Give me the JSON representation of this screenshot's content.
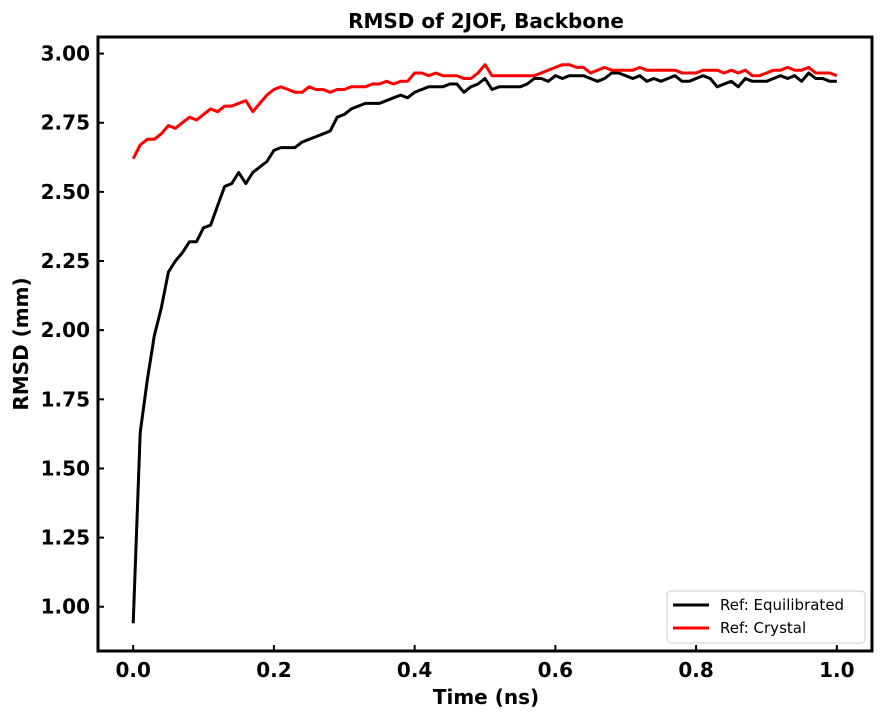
{
  "chart_data": {
    "type": "line",
    "title": "RMSD of 2JOF, Backbone",
    "xlabel": "Time (ns)",
    "ylabel": "RMSD (mm)",
    "xlim": [
      -0.05,
      1.05
    ],
    "ylim": [
      0.84,
      3.06
    ],
    "xticks": [
      0.0,
      0.2,
      0.4,
      0.6,
      0.8,
      1.0
    ],
    "xtick_labels": [
      "0.0",
      "0.2",
      "0.4",
      "0.6",
      "0.8",
      "1.0"
    ],
    "yticks": [
      1.0,
      1.25,
      1.5,
      1.75,
      2.0,
      2.25,
      2.5,
      2.75,
      3.0
    ],
    "ytick_labels": [
      "1.00",
      "1.25",
      "1.50",
      "1.75",
      "2.00",
      "2.25",
      "2.50",
      "2.75",
      "3.00"
    ],
    "grid": false,
    "legend_position": "bottom-right",
    "x": [
      0.0,
      0.01,
      0.02,
      0.03,
      0.04,
      0.05,
      0.06,
      0.07,
      0.08,
      0.09,
      0.1,
      0.11,
      0.12,
      0.13,
      0.14,
      0.15,
      0.16,
      0.17,
      0.18,
      0.19,
      0.2,
      0.21,
      0.22,
      0.23,
      0.24,
      0.25,
      0.26,
      0.27,
      0.28,
      0.29,
      0.3,
      0.31,
      0.32,
      0.33,
      0.34,
      0.35,
      0.36,
      0.37,
      0.38,
      0.39,
      0.4,
      0.41,
      0.42,
      0.43,
      0.44,
      0.45,
      0.46,
      0.47,
      0.48,
      0.49,
      0.5,
      0.51,
      0.52,
      0.53,
      0.54,
      0.55,
      0.56,
      0.57,
      0.58,
      0.59,
      0.6,
      0.61,
      0.62,
      0.63,
      0.64,
      0.65,
      0.66,
      0.67,
      0.68,
      0.69,
      0.7,
      0.71,
      0.72,
      0.73,
      0.74,
      0.75,
      0.76,
      0.77,
      0.78,
      0.79,
      0.8,
      0.81,
      0.82,
      0.83,
      0.84,
      0.85,
      0.86,
      0.87,
      0.88,
      0.89,
      0.9,
      0.91,
      0.92,
      0.93,
      0.94,
      0.95,
      0.96,
      0.97,
      0.98,
      0.99,
      1.0
    ],
    "series": [
      {
        "name": "Ref: Equilibrated",
        "color": "#000000",
        "values": [
          0.94,
          1.63,
          1.82,
          1.98,
          2.08,
          2.21,
          2.25,
          2.28,
          2.32,
          2.32,
          2.37,
          2.38,
          2.45,
          2.52,
          2.53,
          2.57,
          2.53,
          2.57,
          2.59,
          2.61,
          2.65,
          2.66,
          2.66,
          2.66,
          2.68,
          2.69,
          2.7,
          2.71,
          2.72,
          2.77,
          2.78,
          2.8,
          2.81,
          2.82,
          2.82,
          2.82,
          2.83,
          2.84,
          2.85,
          2.84,
          2.86,
          2.87,
          2.88,
          2.88,
          2.88,
          2.89,
          2.89,
          2.86,
          2.88,
          2.89,
          2.91,
          2.87,
          2.88,
          2.88,
          2.88,
          2.88,
          2.89,
          2.91,
          2.91,
          2.9,
          2.92,
          2.91,
          2.92,
          2.92,
          2.92,
          2.91,
          2.9,
          2.91,
          2.93,
          2.93,
          2.92,
          2.91,
          2.92,
          2.9,
          2.91,
          2.9,
          2.91,
          2.92,
          2.9,
          2.9,
          2.91,
          2.92,
          2.91,
          2.88,
          2.89,
          2.9,
          2.88,
          2.91,
          2.9,
          2.9,
          2.9,
          2.91,
          2.92,
          2.91,
          2.92,
          2.9,
          2.93,
          2.91,
          2.91,
          2.9,
          2.9
        ]
      },
      {
        "name": "Ref: Crystal",
        "color": "#ff0000",
        "values": [
          2.62,
          2.67,
          2.69,
          2.69,
          2.71,
          2.74,
          2.73,
          2.75,
          2.77,
          2.76,
          2.78,
          2.8,
          2.79,
          2.81,
          2.81,
          2.82,
          2.83,
          2.79,
          2.82,
          2.85,
          2.87,
          2.88,
          2.87,
          2.86,
          2.86,
          2.88,
          2.87,
          2.87,
          2.86,
          2.87,
          2.87,
          2.88,
          2.88,
          2.88,
          2.89,
          2.89,
          2.9,
          2.89,
          2.9,
          2.9,
          2.93,
          2.93,
          2.92,
          2.93,
          2.92,
          2.92,
          2.92,
          2.91,
          2.91,
          2.93,
          2.96,
          2.92,
          2.92,
          2.92,
          2.92,
          2.92,
          2.92,
          2.92,
          2.93,
          2.94,
          2.95,
          2.96,
          2.96,
          2.95,
          2.95,
          2.93,
          2.94,
          2.95,
          2.94,
          2.94,
          2.94,
          2.94,
          2.95,
          2.94,
          2.94,
          2.94,
          2.94,
          2.94,
          2.93,
          2.93,
          2.93,
          2.94,
          2.94,
          2.94,
          2.93,
          2.94,
          2.93,
          2.94,
          2.92,
          2.92,
          2.93,
          2.94,
          2.94,
          2.95,
          2.94,
          2.94,
          2.95,
          2.93,
          2.93,
          2.93,
          2.92
        ]
      }
    ]
  }
}
